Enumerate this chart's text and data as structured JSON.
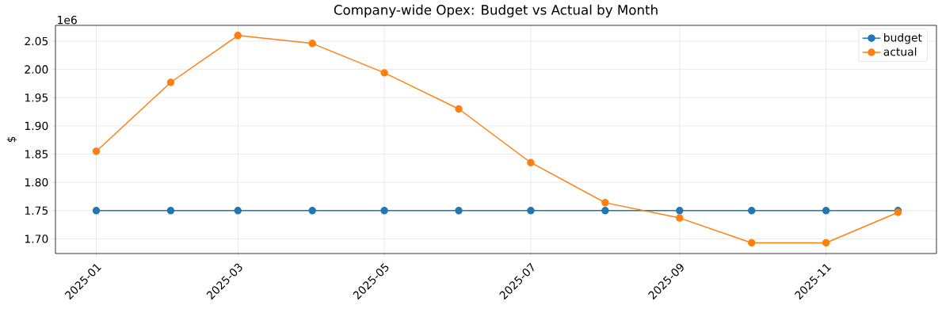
{
  "chart_data": {
    "type": "line",
    "title": "Company-wide Opex: Budget vs Actual by Month",
    "ylabel": "$",
    "x": [
      "2025-01",
      "2025-02",
      "2025-03",
      "2025-04",
      "2025-05",
      "2025-06",
      "2025-07",
      "2025-08",
      "2025-09",
      "2025-10",
      "2025-11",
      "2025-12"
    ],
    "series": [
      {
        "name": "budget",
        "color": "#1f77b4",
        "values": [
          1.75,
          1.75,
          1.75,
          1.75,
          1.75,
          1.75,
          1.75,
          1.75,
          1.75,
          1.75,
          1.75,
          1.75
        ]
      },
      {
        "name": "actual",
        "color": "#ff7f0e",
        "values": [
          1.855,
          1.977,
          2.06,
          2.046,
          1.994,
          1.93,
          1.835,
          1.764,
          1.737,
          1.693,
          1.693,
          1.747
        ]
      }
    ],
    "xlim": [
      "2024-12-15",
      "2025-12-17"
    ],
    "xticks": [
      "2025-01",
      "2025-03",
      "2025-05",
      "2025-07",
      "2025-09",
      "2025-11"
    ],
    "ylim": [
      1.674,
      2.078
    ],
    "yticks": [
      {
        "value": 1.7,
        "label": "1.70"
      },
      1.75,
      {
        "value": 1.8,
        "label": "1.80"
      },
      1.85,
      {
        "value": 1.9,
        "label": "1.90"
      },
      1.95,
      {
        "value": 2.0,
        "label": "2.00"
      },
      2.05
    ],
    "annotations": [
      "1e6"
    ],
    "grid": true,
    "legend": "top right",
    "marker": "circle",
    "line_style": "solid"
  }
}
